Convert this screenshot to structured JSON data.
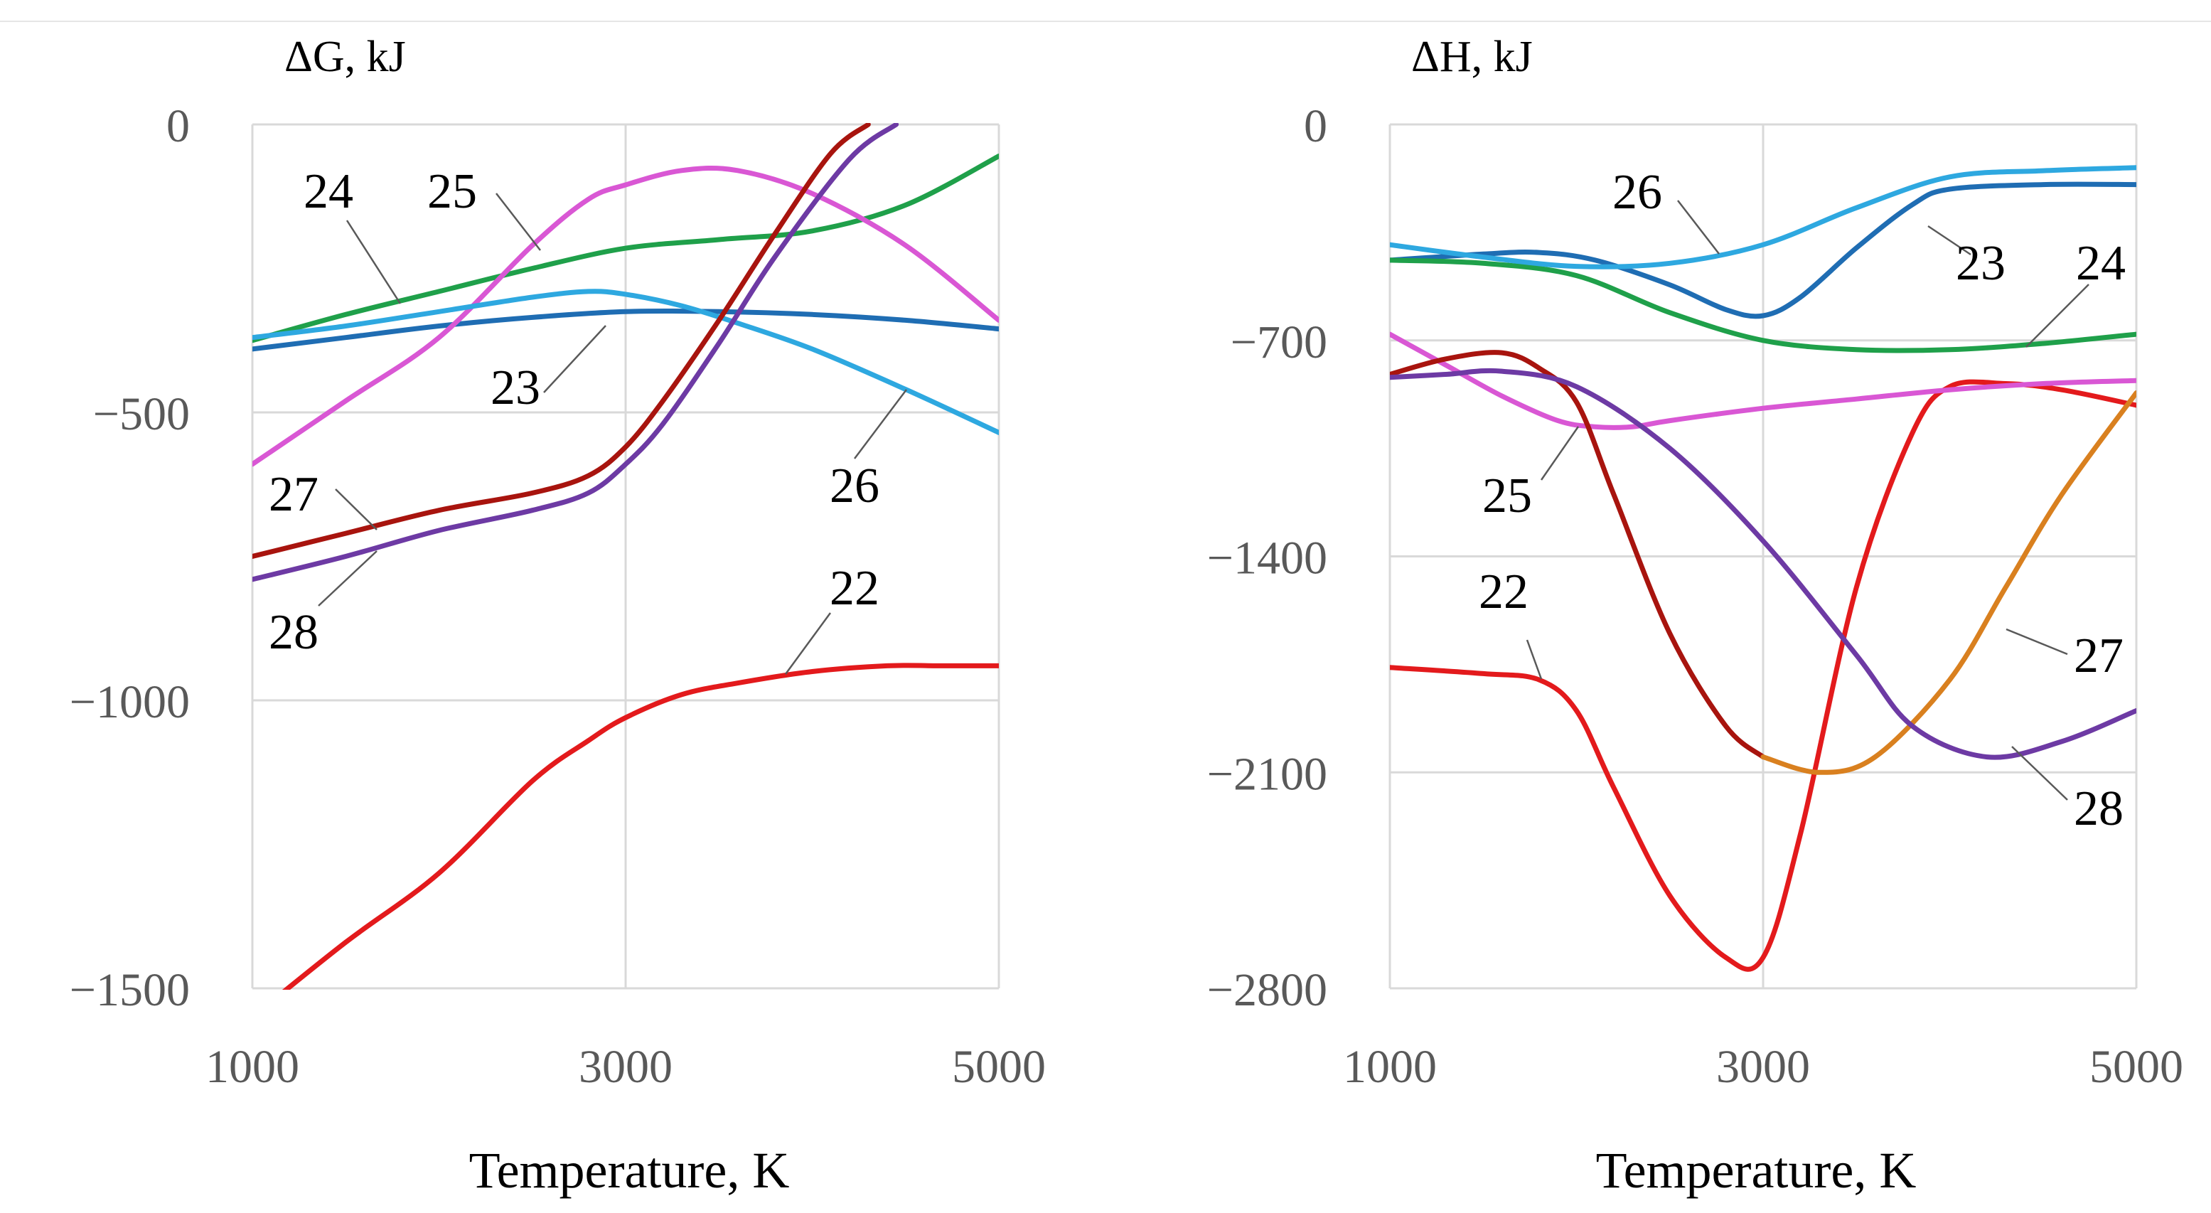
{
  "chart_data": [
    {
      "type": "line",
      "title": "ΔG, kJ",
      "xlabel": "Temperature, K",
      "ylabel": "",
      "xlim": [
        1000,
        5000
      ],
      "ylim": [
        -1500,
        0
      ],
      "x_ticks": [
        1000,
        3000,
        5000
      ],
      "y_ticks": [
        0,
        -500,
        -1000,
        -1500
      ],
      "x_tick_labels": [
        "1000",
        "3000",
        "5000"
      ],
      "y_tick_labels": [
        "0",
        "−500",
        "−1000",
        "−1500"
      ],
      "grid": true,
      "legend": "none (inline series labels)",
      "series": [
        {
          "name": "22",
          "color": "#e31a1c",
          "x": [
            1000,
            1500,
            2000,
            2500,
            2800,
            3000,
            3300,
            3600,
            4000,
            4400,
            4700,
            5000
          ],
          "y": [
            -1550,
            -1420,
            -1300,
            -1140,
            -1070,
            -1030,
            -990,
            -970,
            -950,
            -940,
            -940,
            -940
          ]
        },
        {
          "name": "23",
          "color": "#1f6db3",
          "x": [
            1000,
            1500,
            2000,
            2500,
            3000,
            3500,
            4000,
            4500,
            5000
          ],
          "y": [
            -390,
            -370,
            -350,
            -335,
            -325,
            -325,
            -330,
            -340,
            -355
          ]
        },
        {
          "name": "24",
          "color": "#1fa04a",
          "x": [
            1000,
            1500,
            2000,
            2500,
            3000,
            3500,
            4000,
            4500,
            5000
          ],
          "y": [
            -375,
            -330,
            -290,
            -250,
            -215,
            -200,
            -185,
            -140,
            -55
          ]
        },
        {
          "name": "25",
          "color": "#d957d4",
          "x": [
            1000,
            1500,
            2000,
            2500,
            2800,
            3000,
            3300,
            3600,
            4000,
            4500,
            5000
          ],
          "y": [
            -590,
            -480,
            -370,
            -210,
            -130,
            -105,
            -80,
            -80,
            -120,
            -210,
            -340
          ]
        },
        {
          "name": "26",
          "color": "#2ea8e0",
          "x": [
            1000,
            1500,
            2000,
            2500,
            2800,
            3000,
            3300,
            3600,
            4000,
            4500,
            5000
          ],
          "y": [
            -370,
            -350,
            -325,
            -300,
            -290,
            -295,
            -315,
            -345,
            -390,
            -460,
            -535
          ]
        },
        {
          "name": "27",
          "color": "#a8140e",
          "x": [
            1000,
            1500,
            2000,
            2500,
            2800,
            3000,
            3200,
            3500,
            3800,
            4100,
            4300
          ],
          "y": [
            -750,
            -710,
            -670,
            -640,
            -610,
            -560,
            -480,
            -340,
            -190,
            -50,
            0
          ]
        },
        {
          "name": "28",
          "color": "#6d3aa4",
          "x": [
            1000,
            1500,
            2000,
            2500,
            2800,
            3000,
            3200,
            3500,
            3800,
            4200,
            4450
          ],
          "y": [
            -790,
            -750,
            -705,
            -670,
            -640,
            -590,
            -520,
            -380,
            -230,
            -60,
            0
          ]
        }
      ],
      "annotations": [
        "24",
        "25",
        "23",
        "26",
        "27",
        "28",
        "22"
      ]
    },
    {
      "type": "line",
      "title": "ΔH, kJ",
      "xlabel": "Temperature, K",
      "ylabel": "",
      "xlim": [
        1000,
        5000
      ],
      "ylim": [
        -2800,
        0
      ],
      "x_ticks": [
        1000,
        3000,
        5000
      ],
      "y_ticks": [
        0,
        -700,
        -1400,
        -2100,
        -2800
      ],
      "x_tick_labels": [
        "1000",
        "3000",
        "5000"
      ],
      "y_tick_labels": [
        "0",
        "−700",
        "−1400",
        "−2100",
        "−2800"
      ],
      "grid": true,
      "legend": "none (inline series labels)",
      "series": [
        {
          "name": "22",
          "color": "#e31a1c",
          "x": [
            1000,
            1500,
            1800,
            2000,
            2200,
            2500,
            2800,
            3000,
            3200,
            3500,
            3800,
            4000,
            4300,
            4600,
            5000
          ],
          "y": [
            -1760,
            -1780,
            -1800,
            -1900,
            -2150,
            -2500,
            -2700,
            -2700,
            -2300,
            -1500,
            -1000,
            -850,
            -840,
            -860,
            -910
          ]
        },
        {
          "name": "23",
          "color": "#1f6db3",
          "x": [
            1000,
            1500,
            1800,
            2100,
            2500,
            2800,
            3000,
            3200,
            3500,
            3800,
            4000,
            4500,
            5000
          ],
          "y": [
            -440,
            -420,
            -415,
            -440,
            -520,
            -600,
            -620,
            -560,
            -400,
            -260,
            -210,
            -195,
            -195
          ]
        },
        {
          "name": "24",
          "color": "#1fa04a",
          "x": [
            1000,
            1500,
            2000,
            2500,
            3000,
            3500,
            4000,
            4500,
            5000
          ],
          "y": [
            -440,
            -450,
            -490,
            -610,
            -700,
            -730,
            -730,
            -710,
            -680
          ]
        },
        {
          "name": "25",
          "color": "#d957d4",
          "x": [
            1000,
            1300,
            1600,
            1900,
            2100,
            2300,
            2500,
            3000,
            3500,
            4000,
            4500,
            5000
          ],
          "y": [
            -680,
            -780,
            -880,
            -960,
            -980,
            -980,
            -960,
            -920,
            -890,
            -860,
            -840,
            -830
          ]
        },
        {
          "name": "26",
          "color": "#2ea8e0",
          "x": [
            1000,
            1500,
            2000,
            2500,
            3000,
            3500,
            4000,
            4500,
            5000
          ],
          "y": [
            -390,
            -430,
            -460,
            -450,
            -390,
            -270,
            -170,
            -150,
            -140
          ]
        },
        {
          "name": "27",
          "color": "#a8140e",
          "x": [
            1000,
            1300,
            1600,
            1800,
            2000,
            2200,
            2500,
            2800,
            3000
          ],
          "y": [
            -810,
            -760,
            -740,
            -790,
            -900,
            -1200,
            -1650,
            -1950,
            -2050
          ]
        },
        {
          "name": "27",
          "color": "#d9801f",
          "x": [
            3000,
            3300,
            3600,
            4000,
            4300,
            4600,
            5000
          ],
          "y": [
            -2050,
            -2100,
            -2050,
            -1800,
            -1500,
            -1200,
            -870
          ]
        },
        {
          "name": "28",
          "color": "#6d3aa4",
          "x": [
            1000,
            1300,
            1600,
            2000,
            2500,
            3000,
            3500,
            3800,
            4200,
            4600,
            5000
          ],
          "y": [
            -820,
            -810,
            -800,
            -850,
            -1050,
            -1350,
            -1720,
            -1950,
            -2050,
            -2000,
            -1900
          ]
        }
      ],
      "annotations": [
        "26",
        "23",
        "24",
        "25",
        "22",
        "27",
        "28"
      ]
    }
  ]
}
